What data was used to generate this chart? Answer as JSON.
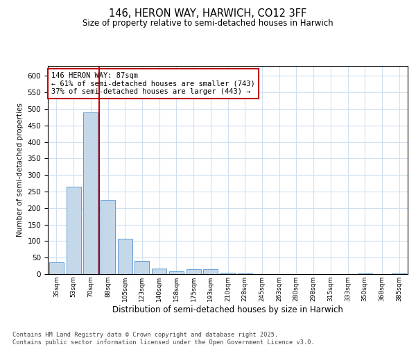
{
  "title1": "146, HERON WAY, HARWICH, CO12 3FF",
  "title2": "Size of property relative to semi-detached houses in Harwich",
  "xlabel": "Distribution of semi-detached houses by size in Harwich",
  "ylabel": "Number of semi-detached properties",
  "bar_labels": [
    "35sqm",
    "53sqm",
    "70sqm",
    "88sqm",
    "105sqm",
    "123sqm",
    "140sqm",
    "158sqm",
    "175sqm",
    "193sqm",
    "210sqm",
    "228sqm",
    "245sqm",
    "263sqm",
    "280sqm",
    "298sqm",
    "315sqm",
    "333sqm",
    "350sqm",
    "368sqm",
    "385sqm"
  ],
  "bar_values": [
    35,
    265,
    490,
    225,
    108,
    40,
    16,
    8,
    14,
    14,
    5,
    2,
    1,
    0,
    0,
    0,
    0,
    0,
    2,
    0,
    2
  ],
  "bar_color": "#c5d8ea",
  "bar_edge_color": "#5b9bd5",
  "property_line_color": "#c00000",
  "annotation_text": "146 HERON WAY: 87sqm\n← 61% of semi-detached houses are smaller (743)\n37% of semi-detached houses are larger (443) →",
  "annotation_box_color": "#c00000",
  "ylim": [
    0,
    630
  ],
  "yticks": [
    0,
    50,
    100,
    150,
    200,
    250,
    300,
    350,
    400,
    450,
    500,
    550,
    600
  ],
  "footer_text": "Contains HM Land Registry data © Crown copyright and database right 2025.\nContains public sector information licensed under the Open Government Licence v3.0.",
  "bg_color": "#ffffff",
  "grid_color": "#d0e0f0"
}
